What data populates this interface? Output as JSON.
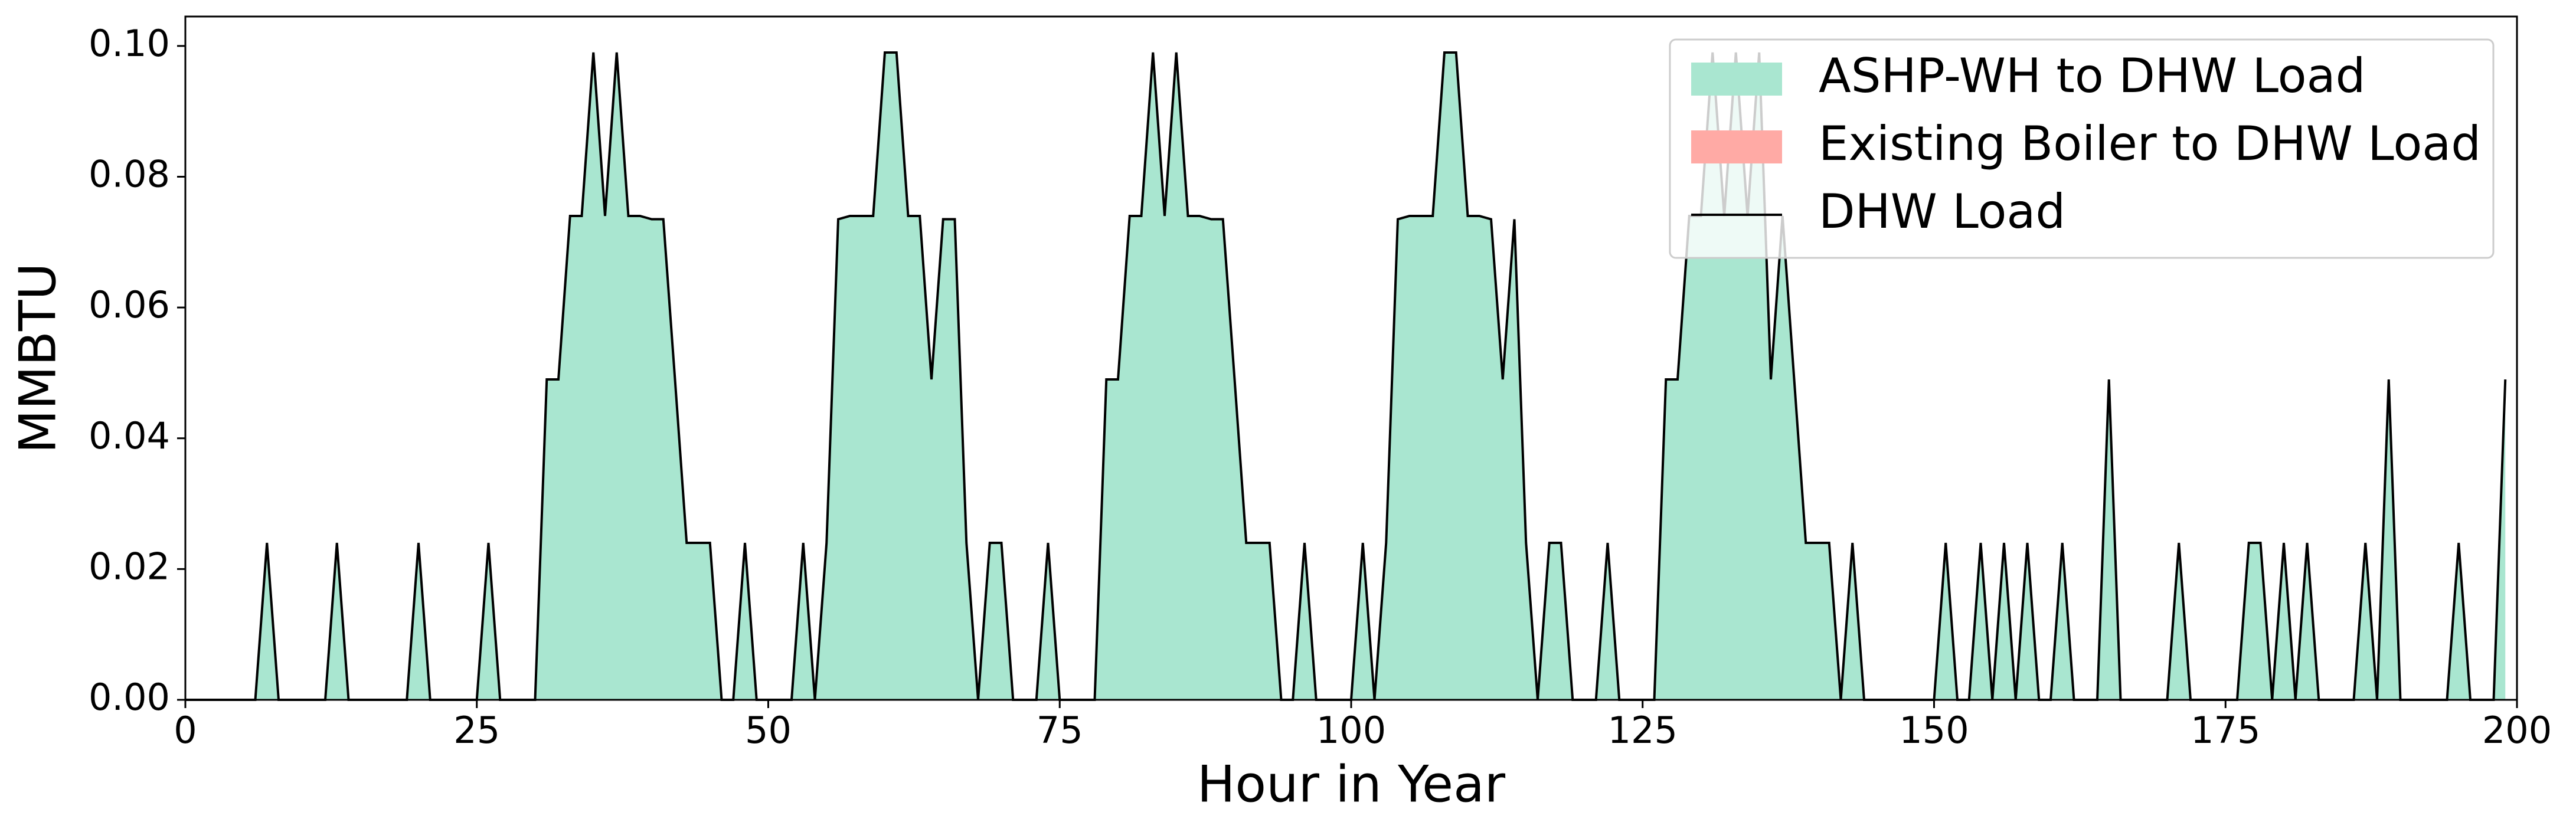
{
  "chart_data": {
    "type": "area",
    "x_label": "Hour in Year",
    "y_label": "MMBTU",
    "xlim": [
      0,
      200
    ],
    "ylim": [
      0,
      0.1045
    ],
    "xticks": [
      0,
      25,
      50,
      75,
      100,
      125,
      150,
      175,
      200
    ],
    "yticks": [
      {
        "value": 0,
        "label": "0.00"
      },
      {
        "value": 0.02,
        "label": "0.02"
      },
      {
        "value": 0.04,
        "label": "0.04"
      },
      {
        "value": 0.06,
        "label": "0.06"
      },
      {
        "value": 0.08,
        "label": "0.08"
      },
      {
        "value": 0.1,
        "label": "0.10"
      }
    ],
    "legend": "upper right",
    "x": [
      0,
      1,
      2,
      3,
      4,
      5,
      6,
      7,
      8,
      9,
      10,
      11,
      12,
      13,
      14,
      15,
      16,
      17,
      18,
      19,
      20,
      21,
      22,
      23,
      24,
      25,
      26,
      27,
      28,
      29,
      30,
      31,
      32,
      33,
      34,
      35,
      36,
      37,
      38,
      39,
      40,
      41,
      42,
      43,
      44,
      45,
      46,
      47,
      48,
      49,
      50,
      51,
      52,
      53,
      54,
      55,
      56,
      57,
      58,
      59,
      60,
      61,
      62,
      63,
      64,
      65,
      66,
      67,
      68,
      69,
      70,
      71,
      72,
      73,
      74,
      75,
      76,
      77,
      78,
      79,
      80,
      81,
      82,
      83,
      84,
      85,
      86,
      87,
      88,
      89,
      90,
      91,
      92,
      93,
      94,
      95,
      96,
      97,
      98,
      99,
      100,
      101,
      102,
      103,
      104,
      105,
      106,
      107,
      108,
      109,
      110,
      111,
      112,
      113,
      114,
      115,
      116,
      117,
      118,
      119,
      120,
      121,
      122,
      123,
      124,
      125,
      126,
      127,
      128,
      129,
      130,
      131,
      132,
      133,
      134,
      135,
      136,
      137,
      138,
      139,
      140,
      141,
      142,
      143,
      144,
      145,
      146,
      147,
      148,
      149,
      150,
      151,
      152,
      153,
      154,
      155,
      156,
      157,
      158,
      159,
      160,
      161,
      162,
      163,
      164,
      165,
      166,
      167,
      168,
      169,
      170,
      171,
      172,
      173,
      174,
      175,
      176,
      177,
      178,
      179,
      180,
      181,
      182,
      183,
      184,
      185,
      186,
      187,
      188,
      189,
      190,
      191,
      192,
      193,
      194,
      195,
      196,
      197,
      198,
      199
    ],
    "series": [
      {
        "name": "ASHP-WH to DHW Load",
        "kind": "fill",
        "color": "#a9e6d0",
        "values": [
          0,
          0,
          0,
          0,
          0,
          0,
          0,
          0.024,
          0,
          0,
          0,
          0,
          0,
          0.024,
          0,
          0,
          0,
          0,
          0,
          0,
          0.024,
          0,
          0,
          0,
          0,
          0,
          0.024,
          0,
          0,
          0,
          0,
          0.049,
          0.049,
          0.074,
          0.074,
          0.099,
          0.074,
          0.099,
          0.074,
          0.074,
          0.0735,
          0.0735,
          0.049,
          0.024,
          0.024,
          0.024,
          0,
          0,
          0.024,
          0,
          0,
          0,
          0,
          0.024,
          0,
          0.024,
          0.0735,
          0.074,
          0.074,
          0.074,
          0.099,
          0.099,
          0.074,
          0.074,
          0.049,
          0.0735,
          0.0735,
          0.024,
          0,
          0.024,
          0.024,
          0,
          0,
          0,
          0.024,
          0,
          0,
          0,
          0,
          0.049,
          0.049,
          0.074,
          0.074,
          0.099,
          0.074,
          0.099,
          0.074,
          0.074,
          0.0735,
          0.0735,
          0.049,
          0.024,
          0.024,
          0.024,
          0,
          0,
          0.024,
          0,
          0,
          0,
          0,
          0.024,
          0,
          0.024,
          0.0735,
          0.074,
          0.074,
          0.074,
          0.099,
          0.099,
          0.074,
          0.074,
          0.0735,
          0.049,
          0.0735,
          0.024,
          0,
          0.024,
          0.024,
          0,
          0,
          0,
          0.024,
          0,
          0,
          0,
          0,
          0.049,
          0.049,
          0.074,
          0.074,
          0.099,
          0.074,
          0.099,
          0.074,
          0.099,
          0.049,
          0.074,
          0.049,
          0.024,
          0.024,
          0.024,
          0,
          0.024,
          0,
          0,
          0,
          0,
          0,
          0,
          0,
          0.024,
          0,
          0,
          0.024,
          0,
          0.024,
          0,
          0.024,
          0,
          0,
          0.024,
          0,
          0,
          0,
          0.049,
          0,
          0,
          0,
          0,
          0,
          0.024,
          0,
          0,
          0,
          0,
          0,
          0.024,
          0.024,
          0,
          0.024,
          0,
          0.024,
          0,
          0,
          0,
          0,
          0.024,
          0,
          0.049,
          0,
          0,
          0,
          0,
          0,
          0.024,
          0,
          0,
          0,
          0.049
        ]
      },
      {
        "name": "Existing Boiler to DHW Load",
        "kind": "fill",
        "color": "#ffaaa5",
        "values": [
          0,
          0,
          0,
          0,
          0,
          0,
          0,
          0,
          0,
          0,
          0,
          0,
          0,
          0,
          0,
          0,
          0,
          0,
          0,
          0,
          0,
          0,
          0,
          0,
          0,
          0,
          0,
          0,
          0,
          0,
          0,
          0,
          0,
          0,
          0,
          0,
          0,
          0,
          0,
          0,
          0,
          0,
          0,
          0,
          0,
          0,
          0,
          0,
          0,
          0,
          0,
          0,
          0,
          0,
          0,
          0,
          0,
          0,
          0,
          0,
          0,
          0,
          0,
          0,
          0,
          0,
          0,
          0,
          0,
          0,
          0,
          0,
          0,
          0,
          0,
          0,
          0,
          0,
          0,
          0,
          0,
          0,
          0,
          0,
          0,
          0,
          0,
          0,
          0,
          0,
          0,
          0,
          0,
          0,
          0,
          0,
          0,
          0,
          0,
          0,
          0,
          0,
          0,
          0,
          0,
          0,
          0,
          0,
          0,
          0,
          0,
          0,
          0,
          0,
          0,
          0,
          0,
          0,
          0,
          0,
          0,
          0,
          0,
          0,
          0,
          0,
          0,
          0,
          0,
          0,
          0,
          0,
          0,
          0,
          0,
          0,
          0,
          0,
          0,
          0,
          0,
          0,
          0,
          0,
          0,
          0,
          0,
          0,
          0,
          0,
          0,
          0,
          0,
          0,
          0,
          0,
          0,
          0,
          0,
          0,
          0,
          0,
          0,
          0,
          0,
          0,
          0,
          0,
          0,
          0,
          0,
          0,
          0,
          0,
          0,
          0,
          0,
          0,
          0,
          0,
          0,
          0,
          0,
          0,
          0,
          0,
          0,
          0,
          0,
          0,
          0,
          0,
          0,
          0,
          0,
          0,
          0,
          0,
          0,
          0
        ]
      },
      {
        "name": "DHW Load",
        "kind": "line",
        "color": "#000000",
        "values": [
          0,
          0,
          0,
          0,
          0,
          0,
          0,
          0.024,
          0,
          0,
          0,
          0,
          0,
          0.024,
          0,
          0,
          0,
          0,
          0,
          0,
          0.024,
          0,
          0,
          0,
          0,
          0,
          0.024,
          0,
          0,
          0,
          0,
          0.049,
          0.049,
          0.074,
          0.074,
          0.099,
          0.074,
          0.099,
          0.074,
          0.074,
          0.0735,
          0.0735,
          0.049,
          0.024,
          0.024,
          0.024,
          0,
          0,
          0.024,
          0,
          0,
          0,
          0,
          0.024,
          0,
          0.024,
          0.0735,
          0.074,
          0.074,
          0.074,
          0.099,
          0.099,
          0.074,
          0.074,
          0.049,
          0.0735,
          0.0735,
          0.024,
          0,
          0.024,
          0.024,
          0,
          0,
          0,
          0.024,
          0,
          0,
          0,
          0,
          0.049,
          0.049,
          0.074,
          0.074,
          0.099,
          0.074,
          0.099,
          0.074,
          0.074,
          0.0735,
          0.0735,
          0.049,
          0.024,
          0.024,
          0.024,
          0,
          0,
          0.024,
          0,
          0,
          0,
          0,
          0.024,
          0,
          0.024,
          0.0735,
          0.074,
          0.074,
          0.074,
          0.099,
          0.099,
          0.074,
          0.074,
          0.0735,
          0.049,
          0.0735,
          0.024,
          0,
          0.024,
          0.024,
          0,
          0,
          0,
          0.024,
          0,
          0,
          0,
          0,
          0.049,
          0.049,
          0.074,
          0.074,
          0.099,
          0.074,
          0.099,
          0.074,
          0.099,
          0.049,
          0.074,
          0.049,
          0.024,
          0.024,
          0.024,
          0,
          0.024,
          0,
          0,
          0,
          0,
          0,
          0,
          0,
          0.024,
          0,
          0,
          0.024,
          0,
          0.024,
          0,
          0.024,
          0,
          0,
          0.024,
          0,
          0,
          0,
          0.049,
          0,
          0,
          0,
          0,
          0,
          0.024,
          0,
          0,
          0,
          0,
          0,
          0.024,
          0.024,
          0,
          0.024,
          0,
          0.024,
          0,
          0,
          0,
          0,
          0.024,
          0,
          0.049,
          0,
          0,
          0,
          0,
          0,
          0.024,
          0,
          0,
          0,
          0.049
        ]
      }
    ]
  }
}
